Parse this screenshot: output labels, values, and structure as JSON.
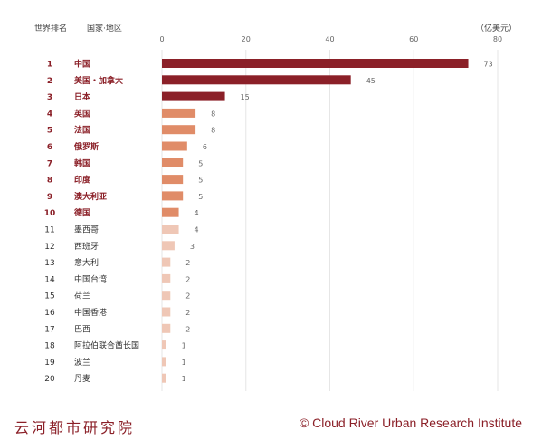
{
  "header": {
    "rank_label": "世界排名",
    "country_label": "国家·地区",
    "unit_label": "（亿美元）"
  },
  "footer": {
    "institute": "云河都市研究院",
    "copyright": "© Cloud River Urban Research Institute"
  },
  "colors": {
    "top3": "#8b2028",
    "top10": "#e08c68",
    "rest": "#efc7b6",
    "accent_text": "#8b2028",
    "normal_text": "#333333"
  },
  "chart_data": {
    "type": "bar",
    "orientation": "horizontal",
    "unit": "（亿美元）",
    "xlim": [
      0,
      80
    ],
    "xticks": [
      0,
      20,
      40,
      60,
      80
    ],
    "grid": true,
    "ranks": [
      1,
      2,
      3,
      4,
      5,
      6,
      7,
      8,
      9,
      10,
      11,
      12,
      13,
      14,
      15,
      16,
      17,
      18,
      19,
      20
    ],
    "categories": [
      "中国",
      "美国・加拿大",
      "日本",
      "英国",
      "法国",
      "俄罗斯",
      "韩国",
      "印度",
      "澳大利亚",
      "德国",
      "墨西哥",
      "西班牙",
      "意大利",
      "中国台湾",
      "荷兰",
      "中国香港",
      "巴西",
      "阿拉伯联合酋长国",
      "波兰",
      "丹麦"
    ],
    "values": [
      73,
      45,
      15,
      8,
      8,
      6,
      5,
      5,
      5,
      4,
      4,
      3,
      2,
      2,
      2,
      2,
      2,
      1,
      1,
      1
    ]
  }
}
